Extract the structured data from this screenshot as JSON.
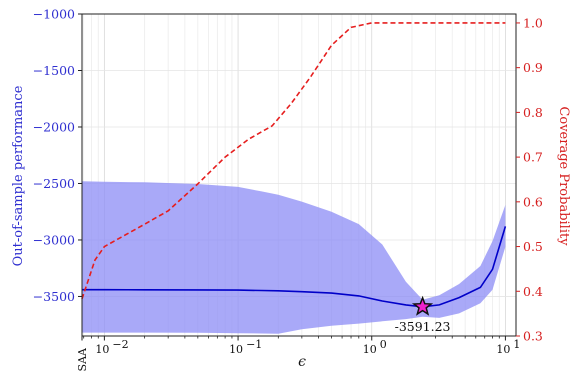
{
  "chart_data": {
    "type": "line",
    "xscale": "log",
    "xlabel": "ϵ",
    "xlim": [
      0.0068,
      12
    ],
    "x_ticks": [
      {
        "value": 0.0068,
        "label": "SAA",
        "rotated": true
      },
      {
        "value": 0.01,
        "label": "10",
        "exp": "−2"
      },
      {
        "value": 0.1,
        "label": "10",
        "exp": "−1"
      },
      {
        "value": 1,
        "label": "10",
        "exp": "0"
      },
      {
        "value": 10,
        "label": "10",
        "exp": "1"
      }
    ],
    "y_left": {
      "label": "Out-of-sample performance",
      "lim": [
        -3850,
        -1000
      ],
      "ticks": [
        -1000,
        -1500,
        -2000,
        -2500,
        -3000,
        -3500
      ],
      "tick_labels": [
        "−1000",
        "−1500",
        "−2000",
        "−2500",
        "−3000",
        "−3500"
      ],
      "color": "#2f2fd0"
    },
    "y_right": {
      "label": "Coverage Probability",
      "lim": [
        0.3,
        1.02
      ],
      "ticks": [
        0.3,
        0.4,
        0.5,
        0.6,
        0.7,
        0.8,
        0.9,
        1.0
      ],
      "tick_labels": [
        "0.3",
        "0.4",
        "0.5",
        "0.6",
        "0.7",
        "0.8",
        "0.9",
        "1.0"
      ],
      "color": "#d62020"
    },
    "series": [
      {
        "axis": "left",
        "style": "solid",
        "color": "#0000c8",
        "x": [
          0.0068,
          0.01,
          0.02,
          0.05,
          0.1,
          0.15,
          0.2,
          0.3,
          0.5,
          0.8,
          1.2,
          1.8,
          2.4,
          3.2,
          4.5,
          6.5,
          8.0,
          10.0
        ],
        "y": [
          -3440,
          -3440,
          -3441,
          -3442,
          -3444,
          -3447,
          -3450,
          -3458,
          -3470,
          -3495,
          -3540,
          -3575,
          -3591.23,
          -3575,
          -3510,
          -3420,
          -3260,
          -2880
        ]
      },
      {
        "axis": "left",
        "style": "band",
        "color": "#8c8cf5",
        "x": [
          0.0068,
          0.01,
          0.02,
          0.05,
          0.1,
          0.15,
          0.2,
          0.3,
          0.5,
          0.8,
          1.2,
          1.8,
          2.4,
          3.2,
          4.5,
          6.5,
          8.0,
          10.0
        ],
        "upper": [
          -2480,
          -2485,
          -2490,
          -2505,
          -2530,
          -2570,
          -2600,
          -2660,
          -2750,
          -2860,
          -3040,
          -3370,
          -3530,
          -3490,
          -3390,
          -3230,
          -3010,
          -2690
        ],
        "lower": [
          -3820,
          -3820,
          -3820,
          -3822,
          -3825,
          -3828,
          -3830,
          -3790,
          -3760,
          -3740,
          -3720,
          -3700,
          -3680,
          -3690,
          -3650,
          -3560,
          -3440,
          -3060
        ]
      },
      {
        "axis": "right",
        "style": "dashed",
        "color": "#e61e1e",
        "x": [
          0.0068,
          0.0085,
          0.01,
          0.02,
          0.03,
          0.05,
          0.08,
          0.12,
          0.18,
          0.25,
          0.35,
          0.5,
          0.7,
          1.0,
          1.3,
          2.0,
          5.0,
          10.0
        ],
        "y": [
          0.383,
          0.47,
          0.5,
          0.55,
          0.58,
          0.64,
          0.7,
          0.74,
          0.77,
          0.82,
          0.88,
          0.95,
          0.99,
          1.0,
          1.0,
          1.0,
          1.0,
          1.0
        ]
      }
    ],
    "annotations": [
      {
        "x": 2.4,
        "y": -3591.23,
        "text": "-3591.23",
        "marker": "star",
        "marker_color": "#ee22cc"
      }
    ],
    "grid": true
  }
}
